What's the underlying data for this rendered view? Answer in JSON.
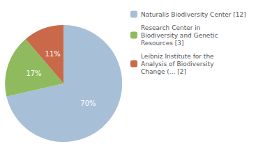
{
  "chart_data": {
    "type": "pie",
    "categories": [
      "Naturalis Biodiversity Center [12]",
      "Research Center in\nBiodiversity and Genetic\nResources [3]",
      "Leibniz Institute for the\nAnalysis of Biodiversity\nChange (... [2]"
    ],
    "values": [
      70,
      17,
      11
    ],
    "value_labels": [
      "70%",
      "17%",
      "11%"
    ],
    "colors": [
      "#a8bfd8",
      "#8fba5e",
      "#c9694a"
    ],
    "data_labels": true,
    "legend": "right"
  }
}
